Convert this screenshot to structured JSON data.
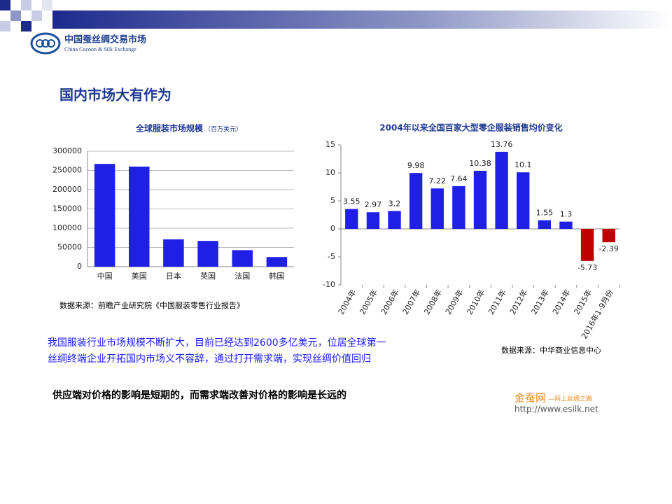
{
  "logo": {
    "name": "中国蚕丝绸交易市场",
    "english": "China Cocoon & Silk Exchange"
  },
  "heading": "国内市场大有作为",
  "chart_data": [
    {
      "type": "bar",
      "title": "全球服装市场规模",
      "subtitle": "（百万美元）",
      "categories": [
        "中国",
        "美国",
        "日本",
        "英国",
        "法国",
        "韩国"
      ],
      "values": [
        267000,
        260000,
        71000,
        67000,
        43000,
        25000
      ],
      "color": "#1f1fe6",
      "ylim": [
        0,
        300000
      ],
      "yticks": [
        0,
        50000,
        100000,
        150000,
        200000,
        250000,
        300000
      ],
      "grid": true,
      "source": "数据来源：前瞻产业研究院《中国服装零售行业报告》"
    },
    {
      "type": "bar",
      "title": "2004年以来全国百家大型零企服装销售均价变化",
      "categories": [
        "2004年",
        "2005年",
        "2006年",
        "2007年",
        "2008年",
        "2009年",
        "2010年",
        "2011年",
        "2012年",
        "2013年",
        "2014年",
        "2015年",
        "2016年1-9月份"
      ],
      "values": [
        3.55,
        2.97,
        3.2,
        9.98,
        7.22,
        7.64,
        10.38,
        13.76,
        10.1,
        1.55,
        1.3,
        -5.73,
        -2.39
      ],
      "colors": [
        "#1f1fe6",
        "#1f1fe6",
        "#1f1fe6",
        "#1f1fe6",
        "#1f1fe6",
        "#1f1fe6",
        "#1f1fe6",
        "#1f1fe6",
        "#1f1fe6",
        "#1f1fe6",
        "#1f1fe6",
        "#c00000",
        "#c00000"
      ],
      "ylim": [
        -10,
        15
      ],
      "yticks": [
        -10,
        -5,
        0,
        5,
        10,
        15
      ],
      "grid": false,
      "source": "数据来源：中华商业信息中心"
    }
  ],
  "body": {
    "lines": [
      "我国服装行业市场规模不断扩大，目前已经达到2600多亿美元，位居全球第一",
      "丝绸终端企业开拓国内市场义不容辞，通过打开需求端，实现丝绸价值回归"
    ],
    "conclusion": "供应端对价格的影响是短期的，而需求端改善对价格的影响是长远的"
  },
  "footer": {
    "brand": "金蚕网",
    "tagline": "—网上丝绸之路",
    "url": "http://www.esilk.net"
  }
}
